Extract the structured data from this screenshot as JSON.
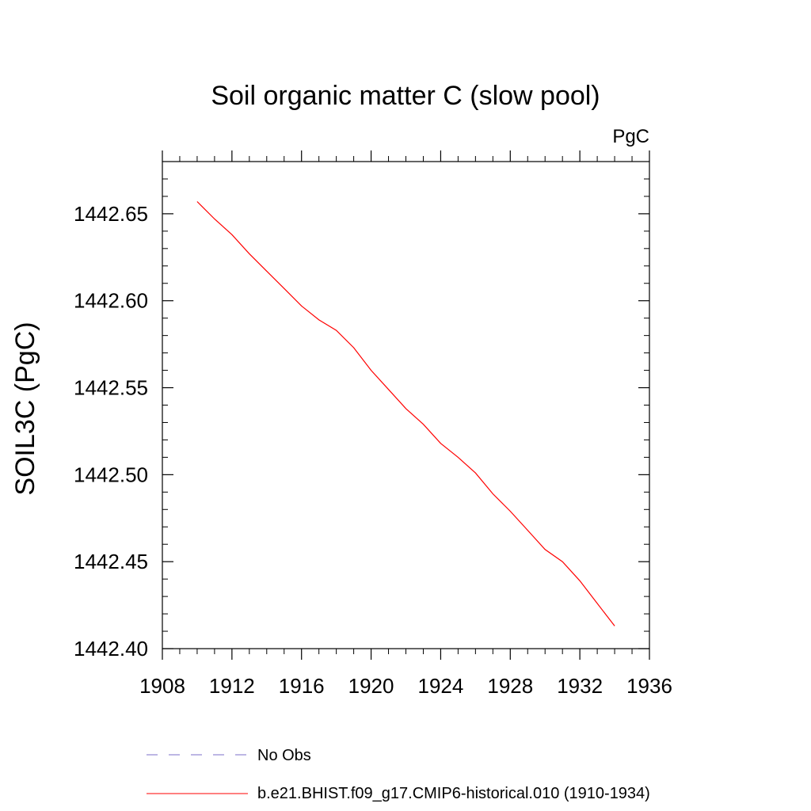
{
  "chart_data": {
    "type": "line",
    "title": "Soil organic matter C (slow pool)",
    "units_label": "PgC",
    "xlabel": "",
    "ylabel": "SOIL3C  (PgC)",
    "xlim": [
      1908,
      1936
    ],
    "ylim": [
      1442.4,
      1442.68
    ],
    "xticks": [
      1908,
      1912,
      1916,
      1920,
      1924,
      1928,
      1932,
      1936
    ],
    "xtick_labels": [
      "1908",
      "1912",
      "1916",
      "1920",
      "1924",
      "1928",
      "1932",
      "1936"
    ],
    "yticks": [
      1442.4,
      1442.45,
      1442.5,
      1442.55,
      1442.6,
      1442.65
    ],
    "ytick_labels": [
      "1442.40",
      "1442.45",
      "1442.50",
      "1442.55",
      "1442.60",
      "1442.65"
    ],
    "series": [
      {
        "name": "b.e21.BHIST.f09_g17.CMIP6-historical.010 (1910-1934)",
        "color": "#ff0000",
        "style": "solid",
        "x": [
          1910,
          1911,
          1912,
          1913,
          1914,
          1915,
          1916,
          1917,
          1918,
          1919,
          1920,
          1921,
          1922,
          1923,
          1924,
          1925,
          1926,
          1927,
          1928,
          1929,
          1930,
          1931,
          1932,
          1933,
          1934
        ],
        "y": [
          1442.657,
          1442.647,
          1442.638,
          1442.627,
          1442.617,
          1442.607,
          1442.597,
          1442.589,
          1442.583,
          1442.573,
          1442.56,
          1442.549,
          1442.538,
          1442.529,
          1442.518,
          1442.51,
          1442.501,
          1442.489,
          1442.479,
          1442.468,
          1442.457,
          1442.45,
          1442.439,
          1442.426,
          1442.413
        ]
      }
    ],
    "legend": [
      {
        "label": "No Obs",
        "color": "#7b6fc9",
        "style": "dashed"
      },
      {
        "label": "b.e21.BHIST.f09_g17.CMIP6-historical.010 (1910-1934)",
        "color": "#ff0000",
        "style": "solid"
      }
    ]
  }
}
